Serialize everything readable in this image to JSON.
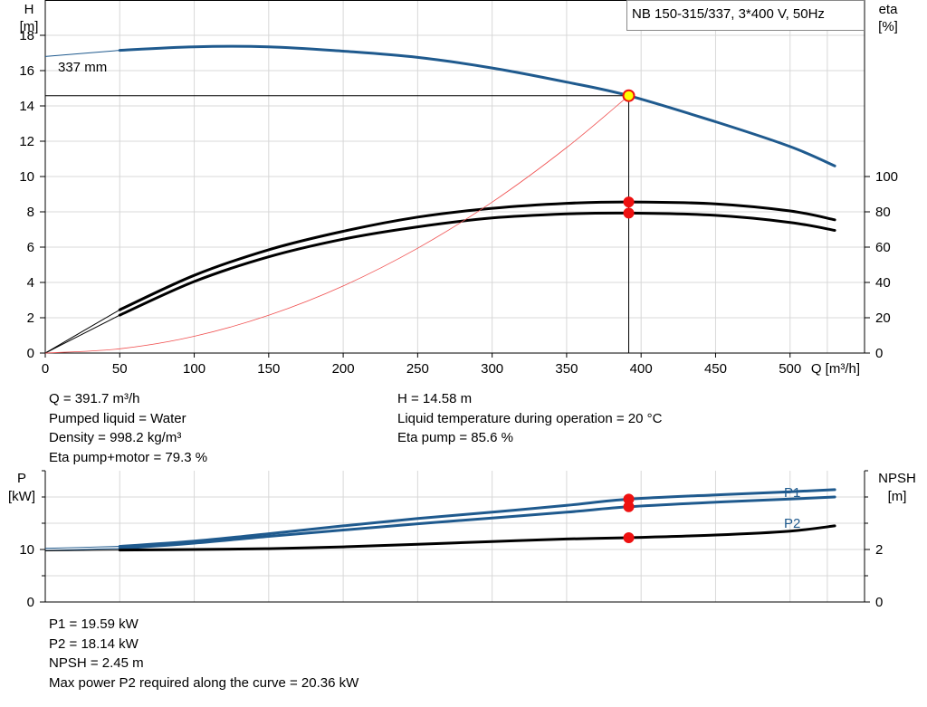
{
  "title": "NB 150-315/337, 3*400 V, 50Hz",
  "colors": {
    "blue": "#1f5a8e",
    "black": "#000000",
    "red": "#ee1111",
    "red_thin": "#f05050",
    "grid": "#d8d8d8",
    "duty_fill": "#ffff00"
  },
  "top_panel": {
    "y_label_left": [
      "H",
      "[m]"
    ],
    "y_label_right": [
      "eta",
      "[%]"
    ],
    "x_label": "Q [m³/h]",
    "x_ticks": [
      "0",
      "50",
      "100",
      "150",
      "200",
      "250",
      "300",
      "350",
      "400",
      "450",
      "500"
    ],
    "y_ticks_left": [
      "0",
      "2",
      "4",
      "6",
      "8",
      "10",
      "12",
      "14",
      "16",
      "18"
    ],
    "y_ticks_right": [
      "0",
      "20",
      "40",
      "60",
      "80",
      "100"
    ],
    "curve_label": "337 mm"
  },
  "bottom_panel": {
    "y_label_left": [
      "P",
      "[kW]"
    ],
    "y_label_right": [
      "NPSH",
      "[m]"
    ],
    "y_ticks_left": [
      "0",
      "10"
    ],
    "y_ticks_right": [
      "0",
      "2"
    ],
    "label_p1": "P1",
    "label_p2": "P2"
  },
  "info_top_left": [
    "Q = 391.7 m³/h",
    "Pumped liquid = Water",
    "Density = 998.2 kg/m³",
    "Eta pump+motor = 79.3 %"
  ],
  "info_top_right": [
    "H = 14.58 m",
    "Liquid temperature during operation = 20 °C",
    "Eta pump = 85.6 %"
  ],
  "info_bottom": [
    "P1 = 19.59 kW",
    "P2 = 18.14 kW",
    "NPSH = 2.45 m",
    "Max power P2 required along the curve = 20.36 kW"
  ],
  "chart_data": [
    {
      "type": "line",
      "title": "NB 150-315/337, 3*400 V, 50Hz",
      "xlabel": "Q [m³/h]",
      "ylabel": "H [m]",
      "ylabel_right": "eta [%]",
      "xlim": [
        0,
        550
      ],
      "ylim": [
        0,
        20
      ],
      "ylim_right": [
        0,
        200
      ],
      "duty_point": {
        "Q": 391.7,
        "H": 14.58
      },
      "series": [
        {
          "name": "337 mm",
          "axis": "left",
          "color": "#1f5a8e",
          "x": [
            0,
            50,
            100,
            150,
            200,
            250,
            300,
            350,
            391.7,
            450,
            500,
            530
          ],
          "y": [
            16.8,
            17.15,
            17.35,
            17.35,
            17.1,
            16.75,
            16.15,
            15.35,
            14.58,
            13.1,
            11.7,
            10.6
          ],
          "thin_before": 50
        },
        {
          "name": "Eta pump",
          "axis": "right",
          "color": "#000000",
          "x": [
            0,
            50,
            100,
            150,
            200,
            250,
            300,
            350,
            391.7,
            450,
            500,
            530
          ],
          "y": [
            0,
            24.5,
            44,
            58.5,
            69,
            77,
            82,
            84.8,
            85.6,
            84.5,
            80.5,
            75.5
          ],
          "thin_before": 50
        },
        {
          "name": "Eta pump+motor",
          "axis": "right",
          "color": "#000000",
          "x": [
            0,
            50,
            100,
            150,
            200,
            250,
            300,
            350,
            391.7,
            450,
            500,
            530
          ],
          "y": [
            0,
            21.5,
            40.5,
            54.5,
            64.5,
            71.5,
            76.5,
            78.8,
            79.3,
            78,
            74,
            69.5
          ],
          "thin_before": 50
        },
        {
          "name": "System curve",
          "axis": "left",
          "color": "#f05050",
          "x": [
            0,
            50,
            100,
            150,
            200,
            250,
            300,
            350,
            391.7
          ],
          "y": [
            0,
            0.24,
            0.95,
            2.14,
            3.8,
            5.94,
            8.55,
            11.64,
            14.58
          ]
        }
      ],
      "markers": [
        {
          "x": 391.7,
          "y": 85.6,
          "axis": "right"
        },
        {
          "x": 391.7,
          "y": 79.3,
          "axis": "right"
        }
      ]
    },
    {
      "type": "line",
      "ylabel": "P [kW]",
      "ylabel_right": "NPSH [m]",
      "xlim": [
        0,
        550
      ],
      "ylim": [
        0,
        25
      ],
      "ylim_right": [
        0,
        5
      ],
      "series": [
        {
          "name": "P1",
          "axis": "left",
          "color": "#1f5a8e",
          "x": [
            0,
            50,
            100,
            150,
            200,
            250,
            300,
            350,
            391.7,
            450,
            500,
            530
          ],
          "y": [
            10.2,
            10.6,
            11.6,
            13.0,
            14.5,
            15.9,
            17.1,
            18.4,
            19.59,
            20.4,
            21.0,
            21.4
          ],
          "thin_before": 50
        },
        {
          "name": "P2",
          "axis": "left",
          "color": "#1f5a8e",
          "x": [
            0,
            50,
            100,
            150,
            200,
            250,
            300,
            350,
            391.7,
            450,
            500,
            530
          ],
          "y": [
            9.8,
            10.2,
            11.2,
            12.5,
            13.7,
            14.9,
            16.0,
            17.1,
            18.14,
            19.0,
            19.6,
            20.0
          ],
          "thin_before": 50
        },
        {
          "name": "NPSH",
          "axis": "right",
          "color": "#000000",
          "x": [
            0,
            50,
            100,
            150,
            200,
            250,
            300,
            350,
            391.7,
            450,
            500,
            530
          ],
          "y": [
            1.95,
            1.98,
            2.0,
            2.03,
            2.1,
            2.2,
            2.3,
            2.4,
            2.45,
            2.55,
            2.7,
            2.9
          ],
          "thin_before": 50
        }
      ],
      "markers": [
        {
          "x": 391.7,
          "y": 19.59,
          "axis": "left"
        },
        {
          "x": 391.7,
          "y": 18.14,
          "axis": "left"
        },
        {
          "x": 391.7,
          "y": 2.45,
          "axis": "right"
        }
      ]
    }
  ]
}
